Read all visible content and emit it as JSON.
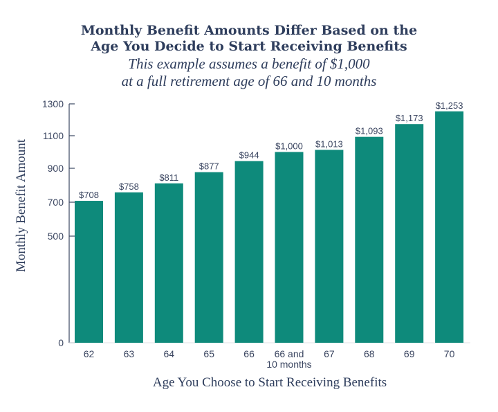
{
  "chart_data": {
    "type": "bar",
    "title": "Monthly Benefit Amounts Differ Based on the Age You Decide to Start Receiving Benefits",
    "title_lines": [
      "Monthly Benefit Amounts Differ Based on the",
      "Age You Decide to Start Receiving Benefits"
    ],
    "subtitle_lines": [
      "This example assumes a benefit of $1,000",
      "at a full retirement age of 66 and 10 months"
    ],
    "xlabel": "Age You Choose to Start Receiving Benefits",
    "ylabel": "Monthly Benefit Amount",
    "categories": [
      "62",
      "63",
      "64",
      "65",
      "66",
      "66 and 10 months",
      "67",
      "68",
      "69",
      "70"
    ],
    "category_lines": [
      [
        "62"
      ],
      [
        "63"
      ],
      [
        "64"
      ],
      [
        "65"
      ],
      [
        "66"
      ],
      [
        "66 and",
        "10 months"
      ],
      [
        "67"
      ],
      [
        "68"
      ],
      [
        "69"
      ],
      [
        "70"
      ]
    ],
    "values": [
      708,
      758,
      811,
      877,
      944,
      1000,
      1013,
      1093,
      1173,
      1253
    ],
    "data_labels": [
      "$708",
      "$758",
      "$811",
      "$877",
      "$944",
      "$1,000",
      "$1,013",
      "$1,093",
      "$1,173",
      "$1,253"
    ],
    "yticks": [
      0,
      500,
      700,
      900,
      1100,
      1300
    ],
    "ylim": [
      0,
      1300
    ],
    "grid": false,
    "bar_color": "#0e8a7b",
    "text_color": "#2e3d5c"
  }
}
